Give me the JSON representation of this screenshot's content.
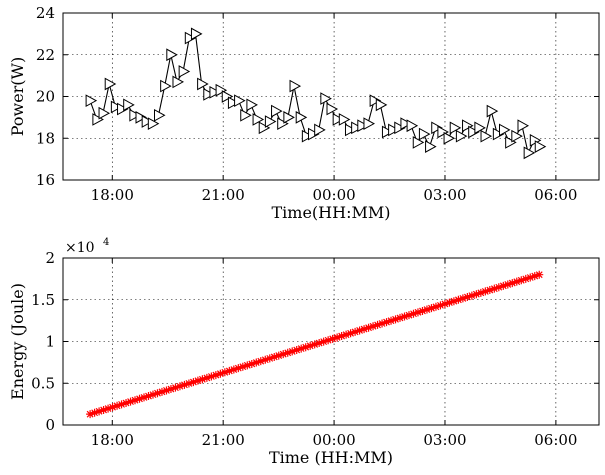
{
  "chart_data": [
    {
      "type": "line",
      "xlabel": "Time(HH:MM)",
      "ylabel": "Power(W)",
      "ylim": [
        16,
        24
      ],
      "yticks": [
        "16",
        "18",
        "20",
        "22",
        "24"
      ],
      "xlim": [
        "16:40",
        "07:10"
      ],
      "xticks": [
        "18:00",
        "21:00",
        "00:00",
        "03:00",
        "06:00"
      ],
      "grid": true,
      "marker": "triangle-right",
      "series": [
        {
          "color": "#000000",
          "x": [
            "17:24",
            "17:35",
            "17:45",
            "17:55",
            "18:05",
            "18:15",
            "18:25",
            "18:35",
            "18:45",
            "18:55",
            "19:05",
            "19:15",
            "19:25",
            "19:35",
            "19:45",
            "19:55",
            "20:05",
            "20:15",
            "20:25",
            "20:35",
            "20:45",
            "20:55",
            "21:05",
            "21:15",
            "21:25",
            "21:35",
            "21:45",
            "21:55",
            "22:05",
            "22:15",
            "22:25",
            "22:35",
            "22:45",
            "22:55",
            "23:05",
            "23:15",
            "23:25",
            "23:35",
            "23:45",
            "23:55",
            "00:05",
            "00:15",
            "00:25",
            "00:35",
            "00:45",
            "00:55",
            "01:05",
            "01:15",
            "01:25",
            "01:35",
            "01:45",
            "01:55",
            "02:05",
            "02:15",
            "02:25",
            "02:35",
            "02:45",
            "02:55",
            "03:05",
            "03:15",
            "03:25",
            "03:35",
            "03:45",
            "03:55",
            "04:05",
            "04:15",
            "04:25",
            "04:35",
            "04:45",
            "04:55",
            "05:05",
            "05:15",
            "05:25",
            "05:33"
          ],
          "y": [
            19.8,
            18.9,
            19.2,
            20.6,
            19.5,
            19.4,
            19.6,
            19.1,
            19.0,
            18.8,
            18.7,
            19.1,
            20.5,
            22.0,
            20.7,
            21.2,
            22.8,
            23.0,
            20.6,
            20.1,
            20.2,
            20.3,
            20.0,
            19.7,
            19.8,
            19.1,
            19.6,
            18.9,
            18.5,
            18.8,
            19.3,
            18.7,
            19.0,
            20.5,
            19.0,
            18.1,
            18.2,
            18.4,
            19.9,
            19.4,
            18.9,
            18.9,
            18.4,
            18.5,
            18.6,
            18.7,
            19.8,
            19.6,
            18.3,
            18.4,
            18.5,
            18.7,
            18.6,
            17.8,
            18.2,
            17.6,
            18.5,
            18.3,
            18.0,
            18.5,
            18.1,
            18.6,
            18.3,
            18.5,
            18.1,
            19.3,
            18.2,
            18.4,
            17.8,
            18.1,
            18.6,
            17.3,
            17.9,
            17.6
          ]
        }
      ]
    },
    {
      "type": "line",
      "xlabel": "Time (HH:MM)",
      "ylabel": "Energy (Joule)",
      "ylim": [
        0,
        2
      ],
      "yticks": [
        "0",
        "0.5",
        "1",
        "1.5",
        "2"
      ],
      "y_multiplier_base": "×10",
      "y_multiplier_exp": "4",
      "xlim": [
        "16:40",
        "07:10"
      ],
      "xticks": [
        "18:00",
        "21:00",
        "00:00",
        "03:00",
        "06:00"
      ],
      "grid": true,
      "marker": "asterisk",
      "series": [
        {
          "color": "#ff0000",
          "x": [
            "17:24",
            "05:33"
          ],
          "y": [
            0.13,
            1.8
          ]
        }
      ]
    }
  ]
}
